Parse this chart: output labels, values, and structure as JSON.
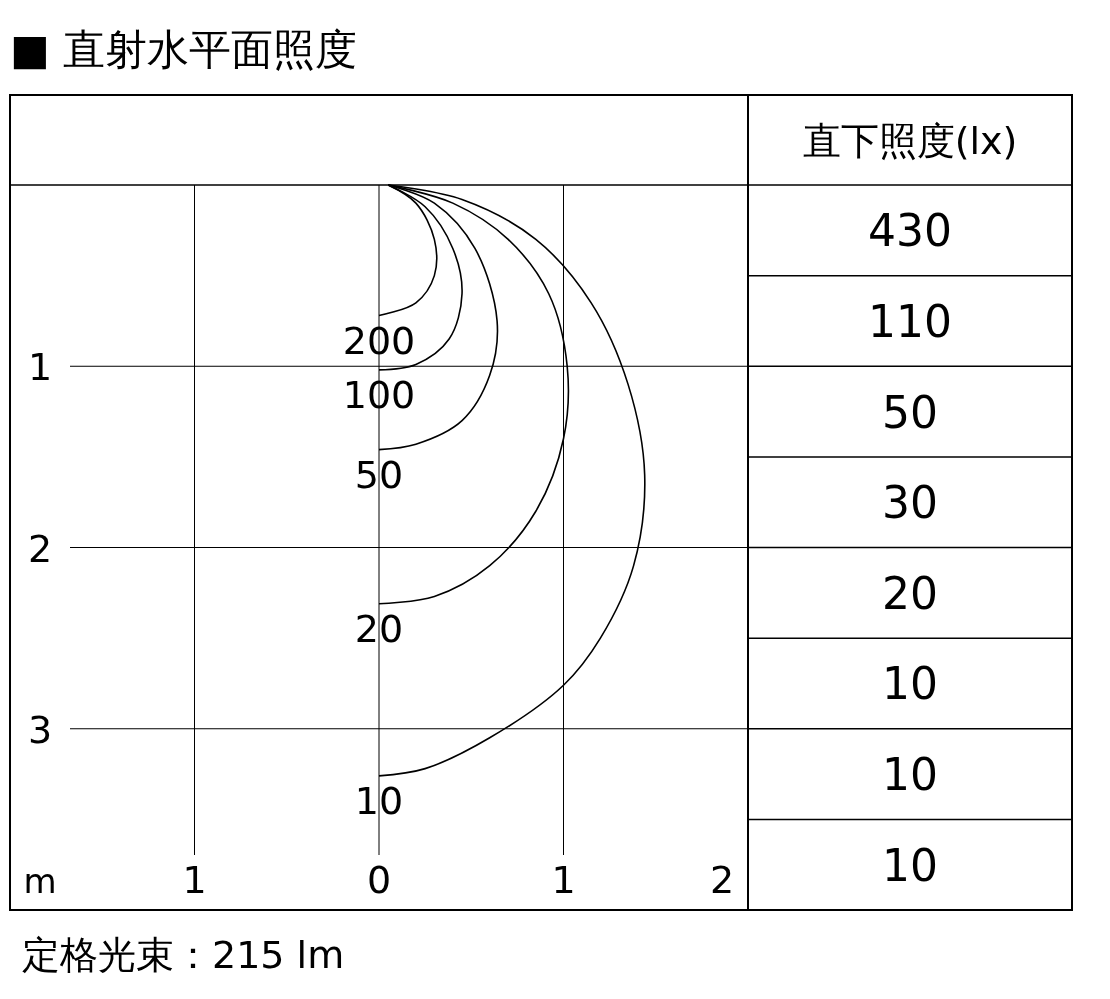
{
  "chart_data": [
    {
      "type": "line",
      "title": "■ 直射水平面照度",
      "xlabel": "m",
      "xlim": [
        -2,
        2
      ],
      "ylim": [
        4,
        0
      ],
      "xticks": [
        {
          "value": -1,
          "label": "1"
        },
        0,
        1,
        2
      ],
      "yticks": [
        1,
        2,
        3
      ],
      "grid": true,
      "color": "#000000",
      "series": [
        {
          "name": "200",
          "x": [
            0.05,
            0.2,
            0.3,
            0.3,
            0.2,
            0
          ],
          "values": [
            0,
            0.1,
            0.3,
            0.5,
            0.65,
            0.72
          ]
        },
        {
          "name": "100",
          "x": [
            0.05,
            0.25,
            0.4,
            0.45,
            0.38,
            0.2,
            0
          ],
          "values": [
            0,
            0.12,
            0.35,
            0.6,
            0.85,
            0.99,
            1.02
          ]
        },
        {
          "name": "50",
          "x": [
            0.05,
            0.3,
            0.52,
            0.64,
            0.6,
            0.45,
            0.2,
            0
          ],
          "values": [
            0,
            0.1,
            0.35,
            0.75,
            1.05,
            1.3,
            1.43,
            1.46
          ]
        },
        {
          "name": "20",
          "x": [
            0.05,
            0.4,
            0.7,
            0.92,
            1.02,
            1.0,
            0.85,
            0.6,
            0.3,
            0
          ],
          "values": [
            0,
            0.1,
            0.3,
            0.6,
            1.0,
            1.4,
            1.8,
            2.1,
            2.27,
            2.31
          ]
        },
        {
          "name": "10",
          "x": [
            0.05,
            0.45,
            0.85,
            1.15,
            1.35,
            1.44,
            1.38,
            1.2,
            1.0,
            0.6,
            0.25,
            0
          ],
          "values": [
            0,
            0.08,
            0.3,
            0.65,
            1.1,
            1.6,
            2.1,
            2.5,
            2.76,
            3.05,
            3.22,
            3.26
          ]
        }
      ],
      "annotations": [
        "定格光束：215 lm"
      ]
    },
    {
      "type": "other",
      "title": "直下照度(lx)",
      "annotations": [
        "430",
        "110",
        "50",
        "30",
        "20",
        "10",
        "10",
        "10"
      ]
    }
  ]
}
